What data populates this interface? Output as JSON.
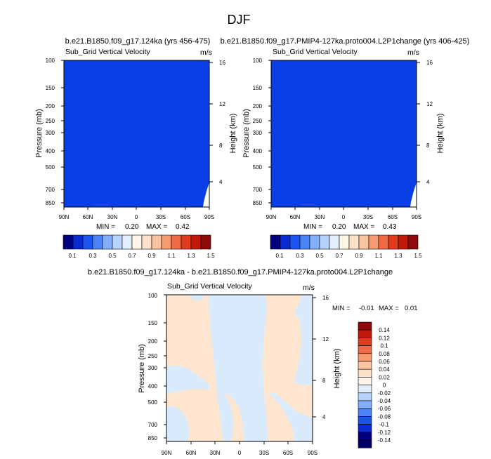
{
  "title": "DJF",
  "colors": {
    "blue_field": "#0a3ee6",
    "cream": "#fde5cf",
    "pale_blue": "#d8eafc"
  },
  "chart_data": [
    {
      "type": "heatmap",
      "panel": "top-left",
      "title": "b.e21.B1850.f09_g17.124ka (yrs 456-475)",
      "subtitle": "Sub_Grid Vertical Velocity",
      "units": "m/s",
      "xlabel": "",
      "ylabel": "Pressure (mb)",
      "ylabel_right": "Height (km)",
      "x_ticks": [
        "90N",
        "60N",
        "30N",
        "0",
        "30S",
        "60S",
        "90S"
      ],
      "y_ticks": [
        "100",
        "150",
        "200",
        "250",
        "300",
        "400",
        "500",
        "700",
        "850"
      ],
      "y_right_ticks": [
        "16",
        "12",
        "8",
        "4"
      ],
      "min_label": "MIN =",
      "min": "0.20",
      "max_label": "MAX =",
      "max": "0.42",
      "colorbar_labels": [
        "0.1",
        "0.3",
        "0.5",
        "0.7",
        "0.9",
        "1.1",
        "1.3",
        "1.5"
      ]
    },
    {
      "type": "heatmap",
      "panel": "top-right",
      "title": "b.e21.B1850.f09_g17.PMIP4-127ka.proto004.L2P1change (yrs 406-425)",
      "subtitle": "Sub_Grid Vertical Velocity",
      "units": "m/s",
      "xlabel": "",
      "ylabel": "Pressure (mb)",
      "ylabel_right": "Height (km)",
      "x_ticks": [
        "90N",
        "60N",
        "30N",
        "0",
        "30S",
        "60S",
        "90S"
      ],
      "y_ticks": [
        "100",
        "150",
        "200",
        "250",
        "300",
        "400",
        "500",
        "700",
        "850"
      ],
      "y_right_ticks": [
        "16",
        "12",
        "8",
        "4"
      ],
      "min_label": "MIN =",
      "min": "0.20",
      "max_label": "MAX =",
      "max": "0.43",
      "colorbar_labels": [
        "0.1",
        "0.3",
        "0.5",
        "0.7",
        "0.9",
        "1.1",
        "1.3",
        "1.5"
      ]
    },
    {
      "type": "heatmap",
      "panel": "bottom-difference",
      "title": "b.e21.B1850.f09_g17.124ka - b.e21.B1850.f09_g17.PMIP4-127ka.proto004.L2P1change",
      "subtitle": "Sub_Grid Vertical Velocity",
      "units": "m/s",
      "xlabel": "",
      "ylabel": "Pressure (mb)",
      "ylabel_right": "Height (km)",
      "x_ticks": [
        "90N",
        "60N",
        "30N",
        "0",
        "30S",
        "60S",
        "90S"
      ],
      "y_ticks": [
        "100",
        "150",
        "200",
        "250",
        "300",
        "400",
        "500",
        "700",
        "850"
      ],
      "y_right_ticks": [
        "16",
        "12",
        "8",
        "4"
      ],
      "min_label": "MIN =",
      "min": "-0.01",
      "max_label": "MAX =",
      "max": "0.01",
      "colorbar_labels": [
        "0.14",
        "0.12",
        "0.1",
        "0.08",
        "0.06",
        "0.04",
        "0.02",
        "0",
        "-0.02",
        "-0.04",
        "-0.06",
        "-0.08",
        "-0.1",
        "-0.12",
        "-0.14"
      ]
    }
  ]
}
